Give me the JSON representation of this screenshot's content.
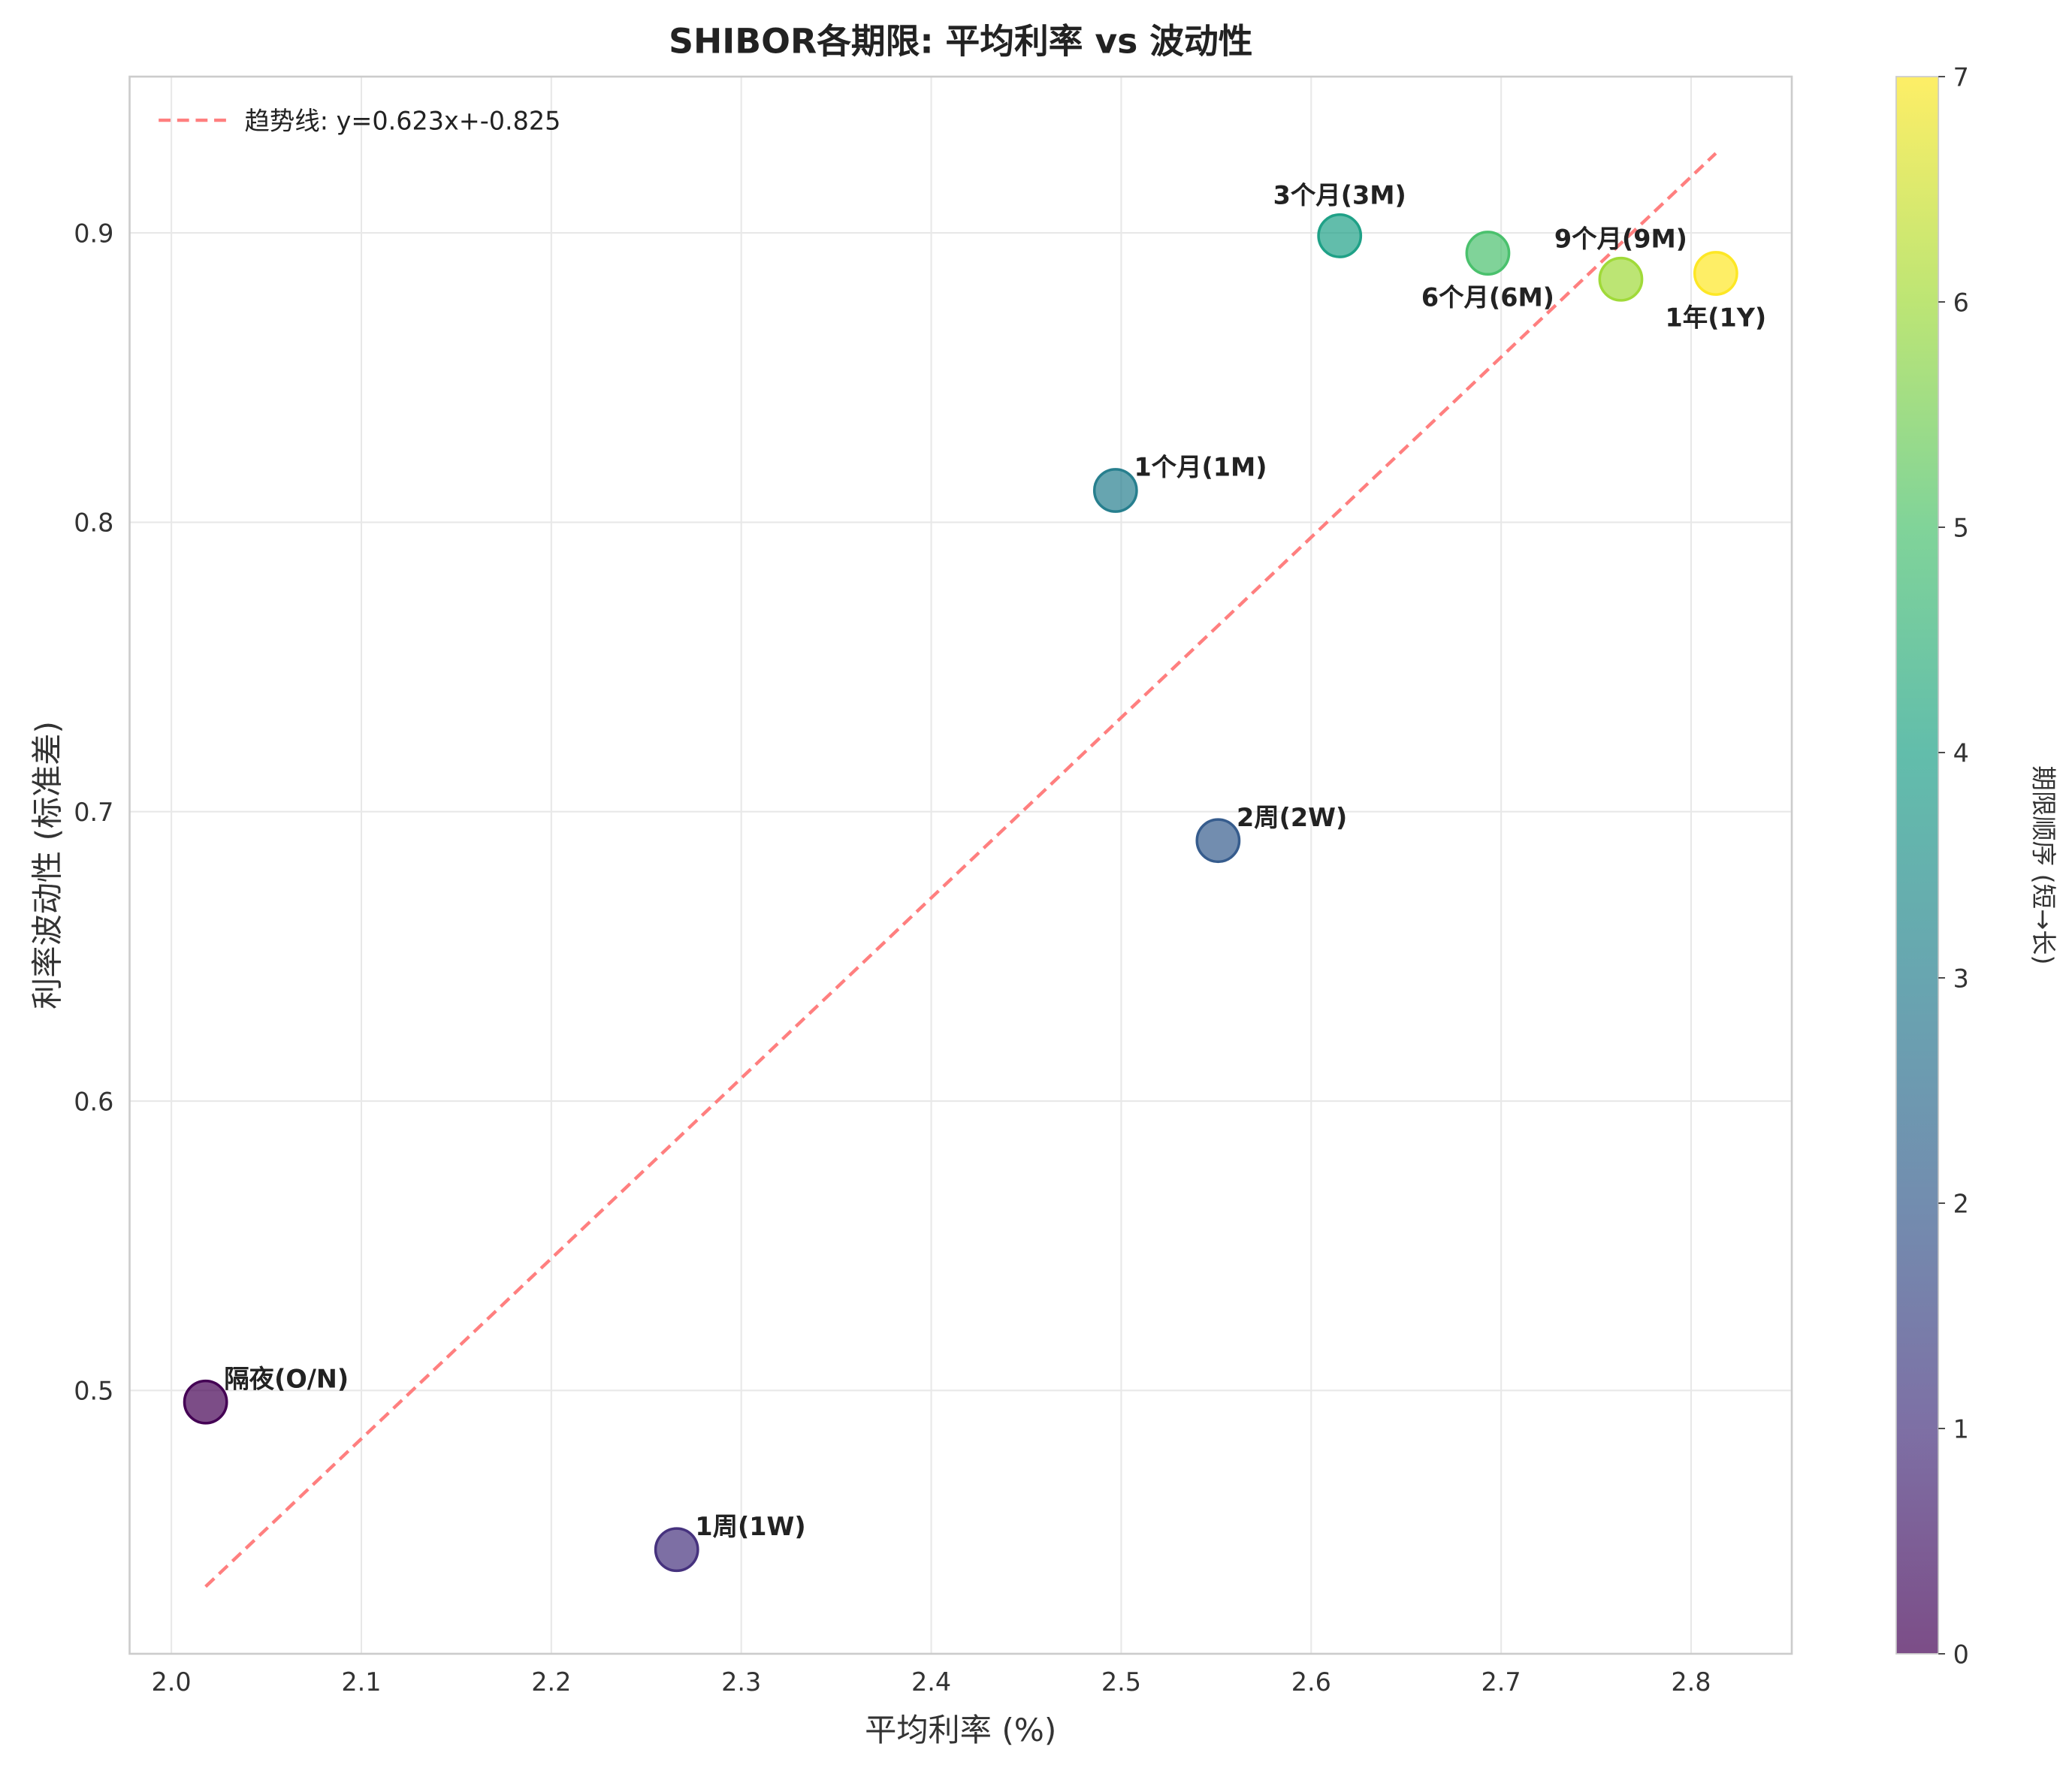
{
  "chart_data": {
    "type": "scatter",
    "title": "SHIBOR各期限: 平均利率 vs 波动性",
    "xlabel": "平均利率 (%)",
    "ylabel": "利率波动性 (标准差)",
    "xlim": [
      1.978,
      2.853
    ],
    "ylim": [
      0.409,
      0.954
    ],
    "xticks": [
      "2.0",
      "2.1",
      "2.2",
      "2.3",
      "2.4",
      "2.5",
      "2.6",
      "2.7",
      "2.8"
    ],
    "yticks": [
      "0.5",
      "0.6",
      "0.7",
      "0.8",
      "0.9"
    ],
    "grid": true,
    "points": [
      {
        "label": "隔夜(O/N)",
        "x": 2.018,
        "y": 0.496,
        "order": 0
      },
      {
        "label": "1周(1W)",
        "x": 2.266,
        "y": 0.445,
        "order": 1
      },
      {
        "label": "2周(2W)",
        "x": 2.551,
        "y": 0.69,
        "order": 2
      },
      {
        "label": "1个月(1M)",
        "x": 2.497,
        "y": 0.811,
        "order": 3
      },
      {
        "label": "3个月(3M)",
        "x": 2.615,
        "y": 0.899,
        "order": 4
      },
      {
        "label": "6个月(6M)",
        "x": 2.693,
        "y": 0.893,
        "order": 5
      },
      {
        "label": "9个月(9M)",
        "x": 2.763,
        "y": 0.884,
        "order": 6
      },
      {
        "label": "1年(1Y)",
        "x": 2.813,
        "y": 0.886,
        "order": 7
      }
    ],
    "trendline": {
      "slope": 0.623,
      "intercept": -0.825,
      "x_range": [
        2.018,
        2.813
      ],
      "color": "#ff7f7f"
    },
    "legend": {
      "label": "趋势线: y=0.623x+-0.825",
      "placement": "top-left"
    },
    "colorbar": {
      "label": "期限顺序 (短→长)",
      "range": [
        0,
        7
      ],
      "ticks": [
        "0",
        "1",
        "2",
        "3",
        "4",
        "5",
        "6",
        "7"
      ],
      "colormap": [
        "#440154",
        "#46327e",
        "#365c8d",
        "#277f8e",
        "#1fa187",
        "#4ac16d",
        "#a0da39",
        "#fde725"
      ]
    }
  }
}
